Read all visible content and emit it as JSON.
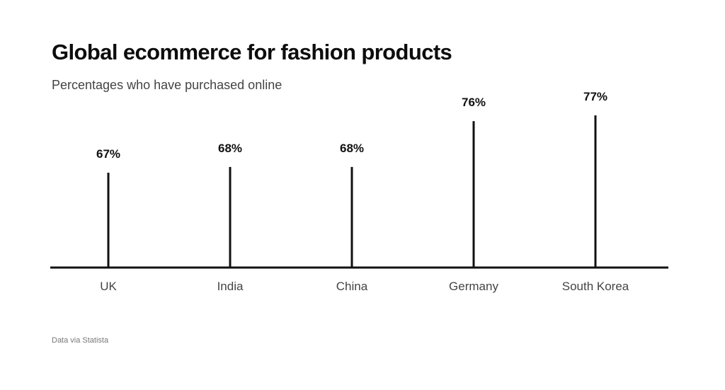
{
  "header": {
    "title": "Global ecommerce for fashion products",
    "subtitle": "Percentages who have purchased online"
  },
  "footer": {
    "source": "Data via Statista"
  },
  "chart_data": {
    "type": "bar",
    "title": "Global ecommerce for fashion products",
    "subtitle": "Percentages who have purchased online",
    "categories": [
      "UK",
      "India",
      "China",
      "Germany",
      "South Korea"
    ],
    "values": [
      67,
      68,
      68,
      76,
      77
    ],
    "value_labels": [
      "67%",
      "68%",
      "68%",
      "76%",
      "77%"
    ],
    "xlabel": "",
    "ylabel": "",
    "ylim": [
      60,
      78
    ],
    "grid": false,
    "legend": "none",
    "colors": {
      "bar": "#111111",
      "baseline": "#111111"
    }
  }
}
